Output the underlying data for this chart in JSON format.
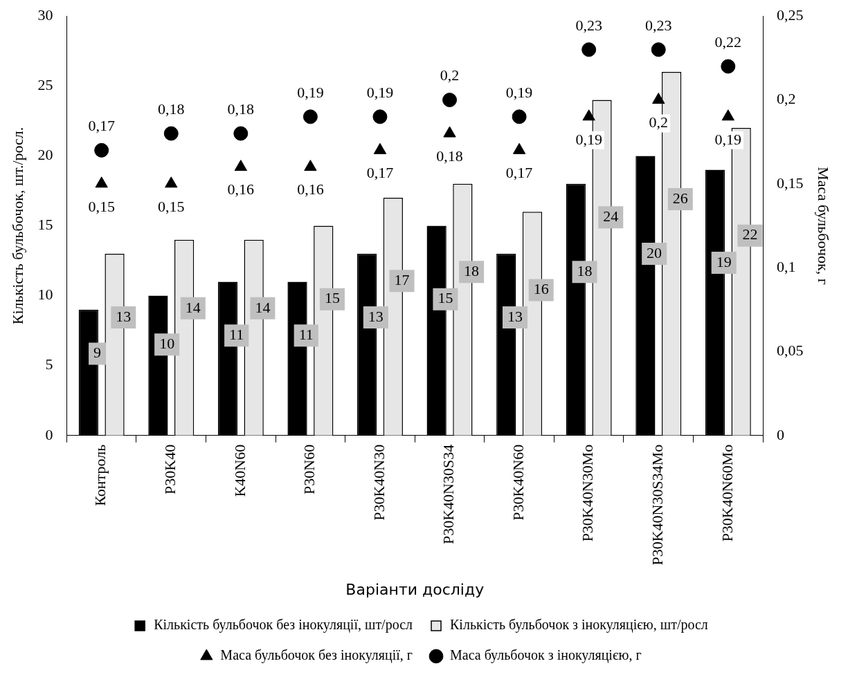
{
  "chart_data": {
    "type": "bar",
    "xlabel": "Варіанти досліду",
    "ylabel": "Кількість бульбочок, шт./росл.",
    "y2label": "Маса бульбочок, г",
    "categories": [
      "Контроль",
      "P30K40",
      "K40N60",
      "P30N60",
      "P30K40N30",
      "P30K40N30S34",
      "P30K40N60",
      "P30K40N30Mo",
      "P30K40N30S34Mo",
      "P30K40N60Mo"
    ],
    "series": [
      {
        "name": "Кількість бульбочок без інокуляції, шт/росл",
        "type": "bar",
        "color": "#000000",
        "values": [
          9,
          10,
          11,
          11,
          13,
          15,
          13,
          18,
          20,
          19
        ],
        "value_labels": [
          "9",
          "10",
          "11",
          "11",
          "13",
          "15",
          "13",
          "18",
          "20",
          "19"
        ]
      },
      {
        "name": "Кількість бульбочок з інокуляцією, шт/росл",
        "type": "bar",
        "color": "#e6e6e6",
        "values": [
          13,
          14,
          14,
          15,
          17,
          18,
          16,
          24,
          26,
          22
        ],
        "value_labels": [
          "13",
          "14",
          "14",
          "15",
          "17",
          "18",
          "16",
          "24",
          "26",
          "22"
        ]
      },
      {
        "name": "Маса бульбочок без інокуляції, г",
        "type": "scatter",
        "axis": "y2",
        "marker": "triangle",
        "color": "#000000",
        "x": [
          "Контроль",
          "P30K40",
          "K40N60",
          "P30N60",
          "P30K40N30",
          "P30K40N30S34",
          "P30K40N60",
          "P30K40N30Mo",
          "P30K40N30S34Mo",
          "P30K40N60Mo"
        ],
        "values": [
          0.15,
          0.15,
          0.16,
          0.16,
          0.17,
          0.18,
          0.17,
          0.19,
          0.2,
          0.19
        ],
        "value_labels": [
          "0,15",
          "0,15",
          "0,16",
          "0,16",
          "0,17",
          "0,18",
          "0,17",
          "0,19",
          "0,2",
          "0,19"
        ]
      },
      {
        "name": "Маса бульбочок з інокуляцією, г",
        "type": "scatter",
        "axis": "y2",
        "marker": "circle",
        "color": "#000000",
        "x": [
          "Контроль",
          "P30K40",
          "K40N60",
          "P30N60",
          "P30K40N30",
          "P30K40N30S34",
          "P30K40N60",
          "P30K40N30Mo",
          "P30K40N30S34Mo",
          "P30K40N60Mo"
        ],
        "values": [
          0.17,
          0.18,
          0.18,
          0.19,
          0.19,
          0.2,
          0.19,
          0.23,
          0.23,
          0.22
        ],
        "value_labels": [
          "0,17",
          "0,18",
          "0,18",
          "0,19",
          "0,19",
          "0,2",
          "0,19",
          "0,23",
          "0,23",
          "0,22"
        ]
      }
    ],
    "ylim": [
      0,
      30
    ],
    "yticks": [
      0,
      5,
      10,
      15,
      20,
      25,
      30
    ],
    "y2lim": [
      0,
      0.25
    ],
    "y2ticks": [
      0,
      {
        "value": 0.05,
        "label": "0,05"
      },
      {
        "value": 0.1,
        "label": "0,1"
      },
      {
        "value": 0.15,
        "label": "0,15"
      },
      {
        "value": 0.2,
        "label": "0,2"
      },
      {
        "value": 0.25,
        "label": "0,25"
      }
    ],
    "grid": false,
    "legend": "bottom"
  }
}
